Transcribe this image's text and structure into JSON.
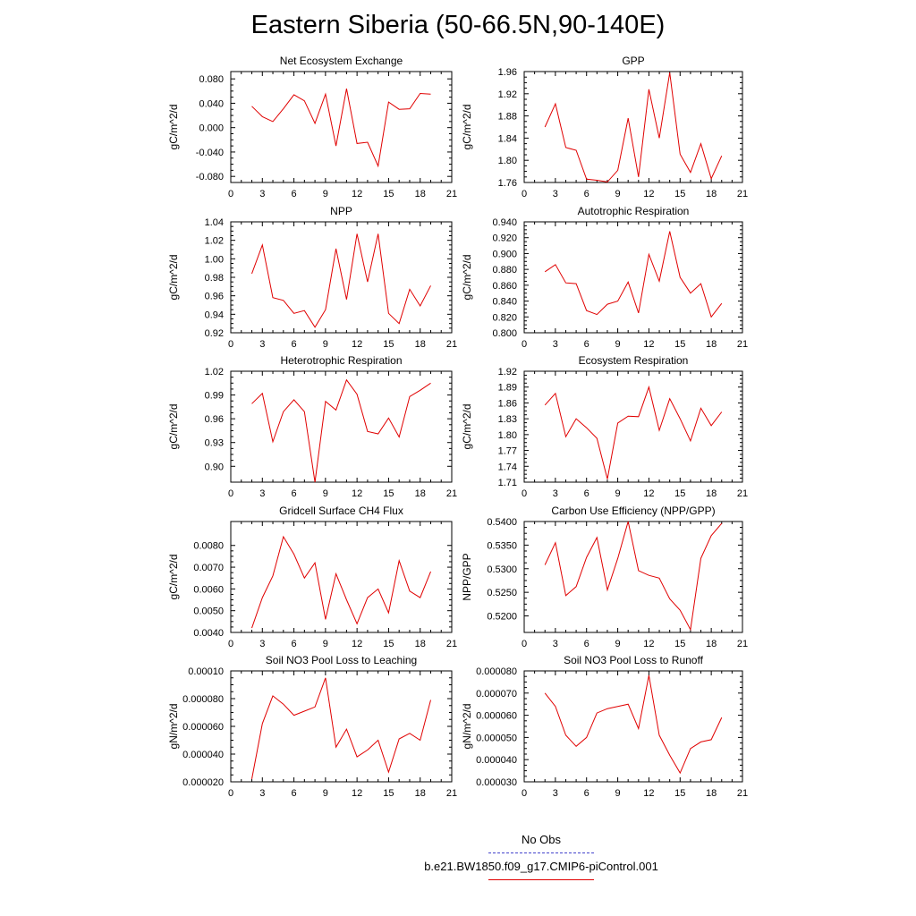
{
  "page": {
    "title": "Eastern Siberia (50-66.5N,90-140E)"
  },
  "legend": [
    {
      "label": "No Obs",
      "color": "#4444cc",
      "dash": true
    },
    {
      "label": "b.e21.BW1850.f09_g17.CMIP6-piControl.001",
      "color": "#e00000",
      "dash": false
    }
  ],
  "chart_data": [
    {
      "type": "line",
      "title": "Net Ecosystem Exchange",
      "ylabel": "gC/m^2/d",
      "xlim": [
        0,
        21
      ],
      "ylim": [
        -0.09,
        0.092
      ],
      "xticks": [
        "0",
        "3",
        "6",
        "9",
        "12",
        "15",
        "18",
        "21"
      ],
      "yticks": [
        -0.08,
        -0.04,
        0.0,
        0.04,
        0.08
      ],
      "ytick_labels": [
        "-0.080",
        "-0.040",
        "0.000",
        "0.040",
        "0.080"
      ],
      "x": [
        2,
        3,
        4,
        5,
        6,
        7,
        8,
        9,
        10,
        11,
        12,
        13,
        14,
        15,
        16,
        17,
        18,
        19
      ],
      "series": [
        {
          "color": "#e00000",
          "values": [
            0.035,
            0.018,
            0.01,
            0.031,
            0.054,
            0.044,
            0.007,
            0.055,
            -0.03,
            0.064,
            -0.026,
            -0.024,
            -0.063,
            0.042,
            0.03,
            0.031,
            0.056,
            0.055
          ]
        }
      ]
    },
    {
      "type": "line",
      "title": "GPP",
      "ylabel": "gC/m^2/d",
      "xlim": [
        0,
        21
      ],
      "ylim": [
        1.76,
        1.96
      ],
      "xticks": [
        "0",
        "3",
        "6",
        "9",
        "12",
        "15",
        "18",
        "21"
      ],
      "yticks": [
        1.76,
        1.8,
        1.84,
        1.88,
        1.92,
        1.96
      ],
      "ytick_labels": [
        "1.76",
        "1.80",
        "1.84",
        "1.88",
        "1.92",
        "1.96"
      ],
      "x": [
        2,
        3,
        4,
        5,
        6,
        7,
        8,
        9,
        10,
        11,
        12,
        13,
        14,
        15,
        16,
        17,
        18,
        19
      ],
      "series": [
        {
          "color": "#e00000",
          "values": [
            1.86,
            1.902,
            1.823,
            1.818,
            1.766,
            1.764,
            1.761,
            1.782,
            1.876,
            1.77,
            1.928,
            1.84,
            1.958,
            1.811,
            1.778,
            1.83,
            1.767,
            1.808
          ]
        }
      ]
    },
    {
      "type": "line",
      "title": "NPP",
      "ylabel": "gC/m^2/d",
      "xlim": [
        0,
        21
      ],
      "ylim": [
        0.92,
        1.04
      ],
      "xticks": [
        "0",
        "3",
        "6",
        "9",
        "12",
        "15",
        "18",
        "21"
      ],
      "yticks": [
        0.92,
        0.94,
        0.96,
        0.98,
        1.0,
        1.02,
        1.04
      ],
      "ytick_labels": [
        "0.92",
        "0.94",
        "0.96",
        "0.98",
        "1.00",
        "1.02",
        "1.04"
      ],
      "x": [
        2,
        3,
        4,
        5,
        6,
        7,
        8,
        9,
        10,
        11,
        12,
        13,
        14,
        15,
        16,
        17,
        18,
        19
      ],
      "series": [
        {
          "color": "#e00000",
          "values": [
            0.984,
            1.015,
            0.958,
            0.955,
            0.941,
            0.944,
            0.926,
            0.945,
            1.011,
            0.956,
            1.027,
            0.975,
            1.027,
            0.941,
            0.93,
            0.967,
            0.949,
            0.971
          ]
        }
      ]
    },
    {
      "type": "line",
      "title": "Autotrophic Respiration",
      "ylabel": "gC/m^2/d",
      "xlim": [
        0,
        21
      ],
      "ylim": [
        0.8,
        0.94
      ],
      "xticks": [
        "0",
        "3",
        "6",
        "9",
        "12",
        "15",
        "18",
        "21"
      ],
      "yticks": [
        0.8,
        0.82,
        0.84,
        0.86,
        0.88,
        0.9,
        0.92,
        0.94
      ],
      "ytick_labels": [
        "0.800",
        "0.820",
        "0.840",
        "0.860",
        "0.880",
        "0.900",
        "0.920",
        "0.940"
      ],
      "x": [
        2,
        3,
        4,
        5,
        6,
        7,
        8,
        9,
        10,
        11,
        12,
        13,
        14,
        15,
        16,
        17,
        18,
        19
      ],
      "series": [
        {
          "color": "#e00000",
          "values": [
            0.877,
            0.886,
            0.863,
            0.862,
            0.828,
            0.823,
            0.836,
            0.84,
            0.864,
            0.825,
            0.899,
            0.865,
            0.928,
            0.87,
            0.85,
            0.862,
            0.82,
            0.837
          ]
        }
      ]
    },
    {
      "type": "line",
      "title": "Heterotrophic Respiration",
      "ylabel": "gC/m^2/d",
      "xlim": [
        0,
        21
      ],
      "ylim": [
        0.88,
        1.02
      ],
      "xticks": [
        "0",
        "3",
        "6",
        "9",
        "12",
        "15",
        "18",
        "21"
      ],
      "yticks": [
        0.9,
        0.93,
        0.96,
        0.99,
        1.02
      ],
      "ytick_labels": [
        "0.90",
        "0.93",
        "0.96",
        "0.99",
        "1.02"
      ],
      "x": [
        2,
        3,
        4,
        5,
        6,
        7,
        8,
        9,
        10,
        11,
        12,
        13,
        14,
        15,
        16,
        17,
        18,
        19
      ],
      "series": [
        {
          "color": "#e00000",
          "values": [
            0.979,
            0.992,
            0.931,
            0.969,
            0.984,
            0.969,
            0.88,
            0.982,
            0.971,
            1.009,
            0.991,
            0.944,
            0.941,
            0.961,
            0.937,
            0.988,
            0.996,
            1.005
          ]
        }
      ]
    },
    {
      "type": "line",
      "title": "Ecosystem Respiration",
      "ylabel": "gC/m^2/d",
      "xlim": [
        0,
        21
      ],
      "ylim": [
        1.71,
        1.92
      ],
      "xticks": [
        "0",
        "3",
        "6",
        "9",
        "12",
        "15",
        "18",
        "21"
      ],
      "yticks": [
        1.71,
        1.74,
        1.77,
        1.8,
        1.83,
        1.86,
        1.89,
        1.92
      ],
      "ytick_labels": [
        "1.71",
        "1.74",
        "1.77",
        "1.80",
        "1.83",
        "1.86",
        "1.89",
        "1.92"
      ],
      "x": [
        2,
        3,
        4,
        5,
        6,
        7,
        8,
        9,
        10,
        11,
        12,
        13,
        14,
        15,
        16,
        17,
        18,
        19
      ],
      "series": [
        {
          "color": "#e00000",
          "values": [
            1.856,
            1.878,
            1.796,
            1.83,
            1.813,
            1.793,
            1.716,
            1.822,
            1.835,
            1.834,
            1.89,
            1.808,
            1.868,
            1.83,
            1.788,
            1.85,
            1.817,
            1.843
          ]
        }
      ]
    },
    {
      "type": "line",
      "title": "Gridcell Surface CH4 Flux",
      "ylabel": "gC/m^2/d",
      "xlim": [
        0,
        21
      ],
      "ylim": [
        0.004,
        0.0091
      ],
      "xticks": [
        "0",
        "3",
        "6",
        "9",
        "12",
        "15",
        "18",
        "21"
      ],
      "yticks": [
        0.004,
        0.005,
        0.006,
        0.007,
        0.008
      ],
      "ytick_labels": [
        "0.0040",
        "0.0050",
        "0.0060",
        "0.0070",
        "0.0080"
      ],
      "x": [
        2,
        3,
        4,
        5,
        6,
        7,
        8,
        9,
        10,
        11,
        12,
        13,
        14,
        15,
        16,
        17,
        18,
        19
      ],
      "series": [
        {
          "color": "#e00000",
          "values": [
            0.0042,
            0.0056,
            0.0066,
            0.0084,
            0.0076,
            0.0065,
            0.0072,
            0.0046,
            0.0067,
            0.0055,
            0.0044,
            0.0056,
            0.006,
            0.0049,
            0.0073,
            0.0059,
            0.0056,
            0.0068
          ]
        }
      ]
    },
    {
      "type": "line",
      "title": "Carbon Use Efficiency (NPP/GPP)",
      "ylabel": "NPP/GPP",
      "xlim": [
        0,
        21
      ],
      "ylim": [
        0.5165,
        0.54
      ],
      "xticks": [
        "0",
        "3",
        "6",
        "9",
        "12",
        "15",
        "18",
        "21"
      ],
      "yticks": [
        0.52,
        0.525,
        0.53,
        0.535,
        0.54
      ],
      "ytick_labels": [
        "0.5200",
        "0.5250",
        "0.5300",
        "0.5350",
        "0.5400"
      ],
      "x": [
        2,
        3,
        4,
        5,
        6,
        7,
        8,
        9,
        10,
        11,
        12,
        13,
        14,
        15,
        16,
        17,
        18,
        19
      ],
      "series": [
        {
          "color": "#e00000",
          "values": [
            0.5308,
            0.5355,
            0.5243,
            0.5262,
            0.5324,
            0.5366,
            0.5255,
            0.5322,
            0.54,
            0.5296,
            0.5286,
            0.528,
            0.5236,
            0.5212,
            0.5171,
            0.5322,
            0.537,
            0.5396
          ]
        }
      ]
    },
    {
      "type": "line",
      "title": "Soil NO3 Pool Loss to Leaching",
      "ylabel": "gN/m^2/d",
      "xlim": [
        0,
        21
      ],
      "ylim": [
        2e-05,
        0.0001
      ],
      "xticks": [
        "0",
        "3",
        "6",
        "9",
        "12",
        "15",
        "18",
        "21"
      ],
      "yticks": [
        2e-05,
        4e-05,
        6e-05,
        8e-05,
        0.0001
      ],
      "ytick_labels": [
        "0.000020",
        "0.000040",
        "0.000060",
        "0.000080",
        "0.00010"
      ],
      "x": [
        2,
        3,
        4,
        5,
        6,
        7,
        8,
        9,
        10,
        11,
        12,
        13,
        14,
        15,
        16,
        17,
        18,
        19
      ],
      "series": [
        {
          "color": "#e00000",
          "values": [
            2.2e-05,
            6.2e-05,
            8.2e-05,
            7.6e-05,
            6.8e-05,
            7.1e-05,
            7.4e-05,
            9.5e-05,
            4.5e-05,
            5.8e-05,
            3.8e-05,
            4.3e-05,
            5e-05,
            2.7e-05,
            5.1e-05,
            5.5e-05,
            5e-05,
            7.9e-05
          ]
        }
      ]
    },
    {
      "type": "line",
      "title": "Soil NO3 Pool Loss to Runoff",
      "ylabel": "gN/m^2/d",
      "xlim": [
        0,
        21
      ],
      "ylim": [
        3e-05,
        8e-05
      ],
      "xticks": [
        "0",
        "3",
        "6",
        "9",
        "12",
        "15",
        "18",
        "21"
      ],
      "yticks": [
        3e-05,
        4e-05,
        5e-05,
        6e-05,
        7e-05,
        8e-05
      ],
      "ytick_labels": [
        "0.000030",
        "0.000040",
        "0.000050",
        "0.000060",
        "0.000070",
        "0.000080"
      ],
      "x": [
        2,
        3,
        4,
        5,
        6,
        7,
        8,
        9,
        10,
        11,
        12,
        13,
        14,
        15,
        16,
        17,
        18,
        19
      ],
      "series": [
        {
          "color": "#e00000",
          "values": [
            7e-05,
            6.4e-05,
            5.1e-05,
            4.6e-05,
            5e-05,
            6.1e-05,
            6.3e-05,
            6.4e-05,
            6.5e-05,
            5.4e-05,
            7.8e-05,
            5.1e-05,
            4.2e-05,
            3.4e-05,
            4.5e-05,
            4.8e-05,
            4.9e-05,
            5.9e-05
          ]
        }
      ]
    }
  ]
}
